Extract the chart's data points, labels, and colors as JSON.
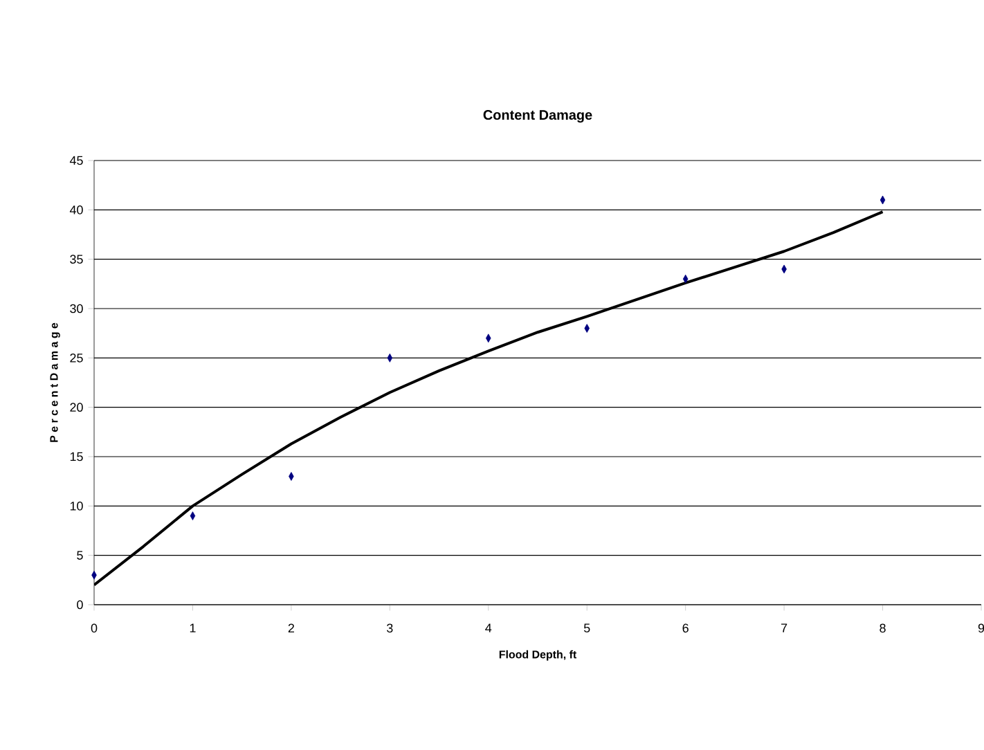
{
  "chart_data": {
    "type": "scatter",
    "title": "Content Damage",
    "xlabel": "Flood Depth, ft",
    "ylabel": "P e r c e n t  D a m a g e",
    "xlim": [
      0,
      9
    ],
    "xticks": [
      0,
      1,
      2,
      3,
      4,
      5,
      6,
      7,
      8,
      9
    ],
    "ylim": [
      0,
      45
    ],
    "yticks": [
      0,
      5,
      10,
      15,
      20,
      25,
      30,
      35,
      40,
      45
    ],
    "grid": "y",
    "legend": false,
    "series": [
      {
        "color": "#000080",
        "marker": "diamond",
        "x": [
          0,
          1,
          2,
          3,
          4,
          5,
          6,
          7,
          8
        ],
        "values": [
          3,
          9,
          13,
          25,
          27,
          28,
          33,
          34,
          41
        ]
      },
      {
        "type": "line",
        "color": "#000000",
        "marker": "none",
        "line_style": "solid",
        "x": [
          0,
          0.5,
          1,
          1.5,
          2,
          2.5,
          3,
          3.5,
          4,
          4.5,
          5,
          5.5,
          6,
          6.5,
          7,
          7.5,
          8
        ],
        "values": [
          2,
          5.9,
          10,
          13.2,
          16.3,
          19,
          21.5,
          23.7,
          25.7,
          27.6,
          29.2,
          30.9,
          32.6,
          34.2,
          35.8,
          37.7,
          39.8
        ]
      }
    ]
  }
}
